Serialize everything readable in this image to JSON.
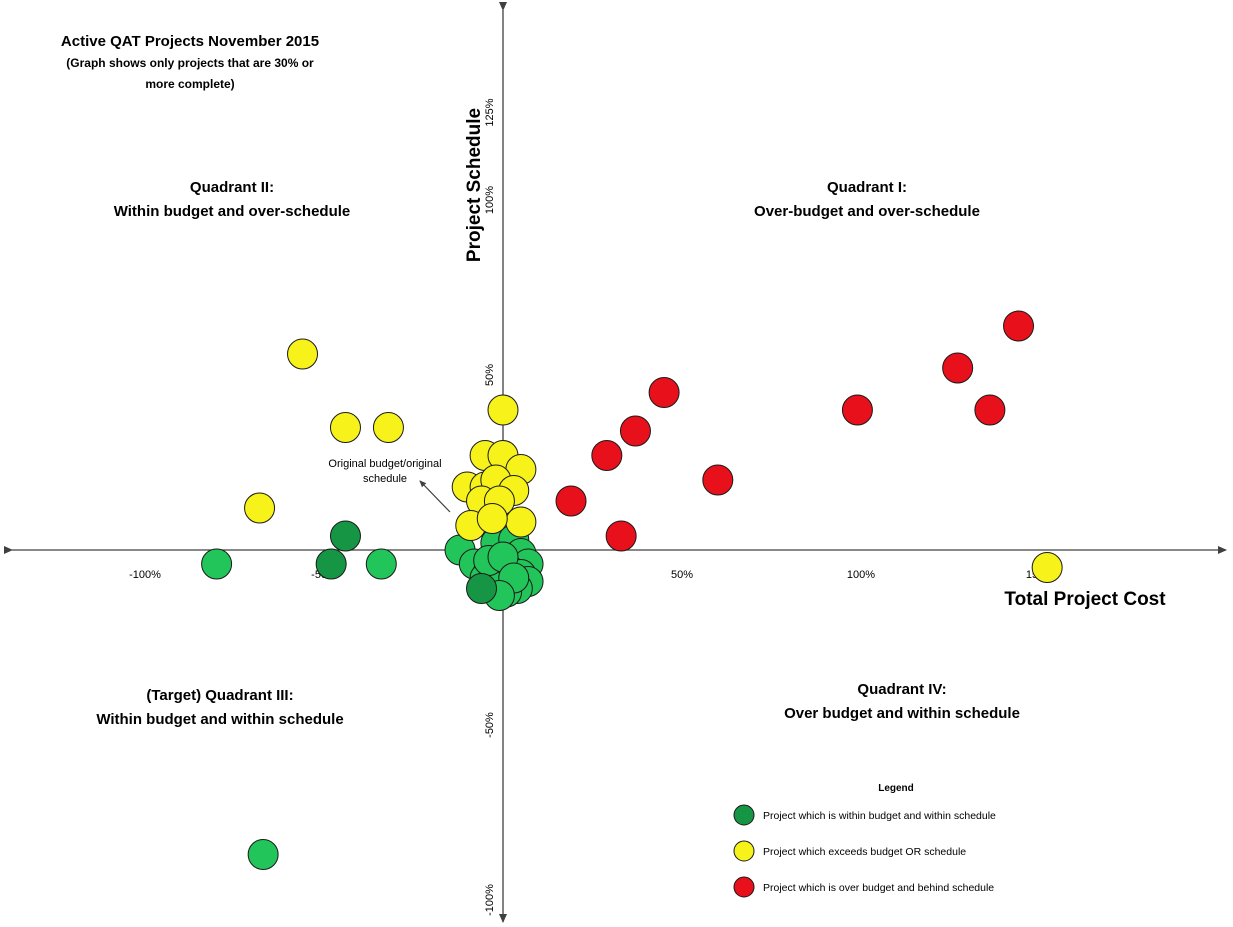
{
  "colors": {
    "green": "#22c55a",
    "dark_green": "#169544",
    "yellow": "#f6f21a",
    "red": "#e8101a",
    "axis": "#404040"
  },
  "chart_data": {
    "type": "scatter",
    "title": "Active QAT Projects November 2015",
    "subtitle_line1": "(Graph shows only projects that are 30% or",
    "subtitle_line2": "more complete)",
    "xlabel": "Total Project Cost",
    "ylabel": "Project Schedule",
    "xlim": [
      -135,
      200
    ],
    "ylim": [
      -105,
      135
    ],
    "x_ticks": [
      {
        "value": -100,
        "label": "-100%"
      },
      {
        "value": -50,
        "label": "-50%"
      },
      {
        "value": 50,
        "label": "50%"
      },
      {
        "value": 100,
        "label": "100%"
      },
      {
        "value": 150,
        "label": "150%"
      }
    ],
    "y_ticks": [
      {
        "value": 125,
        "label": "125%"
      },
      {
        "value": 100,
        "label": "100%"
      },
      {
        "value": 50,
        "label": "50%"
      },
      {
        "value": -50,
        "label": "-50%"
      },
      {
        "value": -100,
        "label": "-100%"
      }
    ],
    "grid": false,
    "legend_position": "bottom-right",
    "quadrants": [
      {
        "id": "quadrant-i",
        "line1": "Quadrant I:",
        "line2": "Over-budget and over-schedule"
      },
      {
        "id": "quadrant-ii",
        "line1": "Quadrant II:",
        "line2": "Within budget and over-schedule"
      },
      {
        "id": "quadrant-iii",
        "line1": "(Target) Quadrant III:",
        "line2": "Within budget and within schedule"
      },
      {
        "id": "quadrant-iv",
        "line1": "Quadrant IV:",
        "line2": "Over budget and within schedule"
      }
    ],
    "annotation": {
      "line1": "Original budget/original",
      "line2": "schedule"
    },
    "legend": {
      "title": "Legend",
      "entries": [
        {
          "label": "Project which is within budget and within schedule",
          "color_key": "dark_green"
        },
        {
          "label": "Project which exceeds budget OR schedule",
          "color_key": "yellow"
        },
        {
          "label": "Project which is over budget and behind schedule",
          "color_key": "red"
        }
      ]
    },
    "series": [
      {
        "color_key": "green",
        "points": [
          [
            -80,
            -4
          ],
          [
            -34,
            -4
          ],
          [
            -12,
            0
          ],
          [
            -2,
            2
          ],
          [
            3,
            3
          ],
          [
            5,
            -1
          ],
          [
            7,
            -4
          ],
          [
            -8,
            -4
          ],
          [
            -4,
            -6
          ],
          [
            -1,
            -5
          ],
          [
            2,
            -6
          ],
          [
            5,
            -7
          ],
          [
            7,
            -9
          ],
          [
            4,
            -11
          ],
          [
            1,
            -12
          ],
          [
            -3,
            -10
          ],
          [
            -5,
            -8
          ],
          [
            -4,
            -3
          ],
          [
            0,
            -2
          ],
          [
            3,
            -8
          ],
          [
            -1,
            -13
          ],
          [
            -67,
            -87
          ]
        ]
      },
      {
        "color_key": "dark_green",
        "points": [
          [
            -44,
            4
          ],
          [
            -48,
            -4
          ],
          [
            -6,
            -11
          ]
        ]
      },
      {
        "color_key": "yellow",
        "points": [
          [
            -56,
            56
          ],
          [
            -44,
            35
          ],
          [
            -32,
            35
          ],
          [
            -68,
            12
          ],
          [
            0,
            40
          ],
          [
            -5,
            27
          ],
          [
            0,
            27
          ],
          [
            5,
            23
          ],
          [
            -10,
            18
          ],
          [
            -5,
            18
          ],
          [
            -2,
            20
          ],
          [
            3,
            17
          ],
          [
            -6,
            14
          ],
          [
            -1,
            14
          ],
          [
            5,
            8
          ],
          [
            -9,
            7
          ],
          [
            -3,
            9
          ],
          [
            152,
            -5
          ]
        ]
      },
      {
        "color_key": "red",
        "points": [
          [
            144,
            64
          ],
          [
            127,
            52
          ],
          [
            99,
            40
          ],
          [
            136,
            40
          ],
          [
            45,
            45
          ],
          [
            37,
            34
          ],
          [
            29,
            27
          ],
          [
            60,
            20
          ],
          [
            19,
            14
          ],
          [
            33,
            4
          ]
        ]
      }
    ]
  }
}
